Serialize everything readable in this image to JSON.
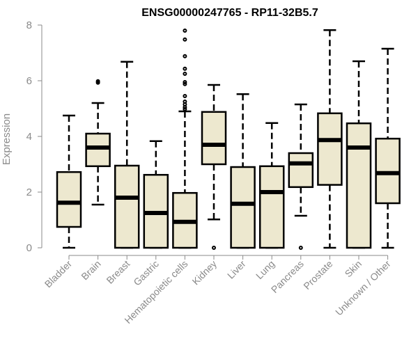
{
  "chart_data": {
    "type": "boxplot",
    "title": "ENSG00000247765 - RP11-32B5.7",
    "xlabel": "",
    "ylabel": "Expression",
    "ylim": [
      0,
      8
    ],
    "yticks": [
      0,
      2,
      4,
      6,
      8
    ],
    "grid": false,
    "box_color": "#ede8cf",
    "categories": [
      "Bladder",
      "Brain",
      "Breast",
      "Gastric",
      "Hematopoietic cells",
      "Kidney",
      "Liver",
      "Lung",
      "Pancreas",
      "Prostate",
      "Skin",
      "Unknown / Other"
    ],
    "boxes": [
      {
        "min": 0,
        "q1": 0.75,
        "median": 1.62,
        "q3": 2.72,
        "max": 4.75,
        "outliers": []
      },
      {
        "min": 1.55,
        "q1": 2.93,
        "median": 3.6,
        "q3": 4.1,
        "max": 5.2,
        "outliers": [
          5.93,
          5.98
        ]
      },
      {
        "min": 0,
        "q1": 0,
        "median": 1.8,
        "q3": 2.95,
        "max": 6.68,
        "outliers": []
      },
      {
        "min": 0,
        "q1": 0,
        "median": 1.25,
        "q3": 2.62,
        "max": 3.83,
        "outliers": []
      },
      {
        "min": 0,
        "q1": 0,
        "median": 0.93,
        "q3": 1.97,
        "max": 4.9,
        "outliers": [
          7.8,
          7.48,
          6.88,
          6.43,
          6.25,
          5.95,
          5.88,
          5.45,
          5.25,
          5.15,
          5.05,
          4.98
        ]
      },
      {
        "min": 1.02,
        "q1": 3.0,
        "median": 3.7,
        "q3": 4.88,
        "max": 5.85,
        "outliers": [
          0
        ]
      },
      {
        "min": 0,
        "q1": 0,
        "median": 1.58,
        "q3": 2.9,
        "max": 5.52,
        "outliers": []
      },
      {
        "min": 0,
        "q1": 0,
        "median": 2.0,
        "q3": 2.93,
        "max": 4.48,
        "outliers": []
      },
      {
        "min": 1.15,
        "q1": 2.18,
        "median": 3.03,
        "q3": 3.4,
        "max": 5.15,
        "outliers": [
          0
        ]
      },
      {
        "min": 0,
        "q1": 2.26,
        "median": 3.87,
        "q3": 4.83,
        "max": 7.82,
        "outliers": []
      },
      {
        "min": 0,
        "q1": 0,
        "median": 3.6,
        "q3": 4.47,
        "max": 6.7,
        "outliers": []
      },
      {
        "min": 0,
        "q1": 1.6,
        "median": 2.68,
        "q3": 3.92,
        "max": 7.15,
        "outliers": []
      }
    ]
  }
}
